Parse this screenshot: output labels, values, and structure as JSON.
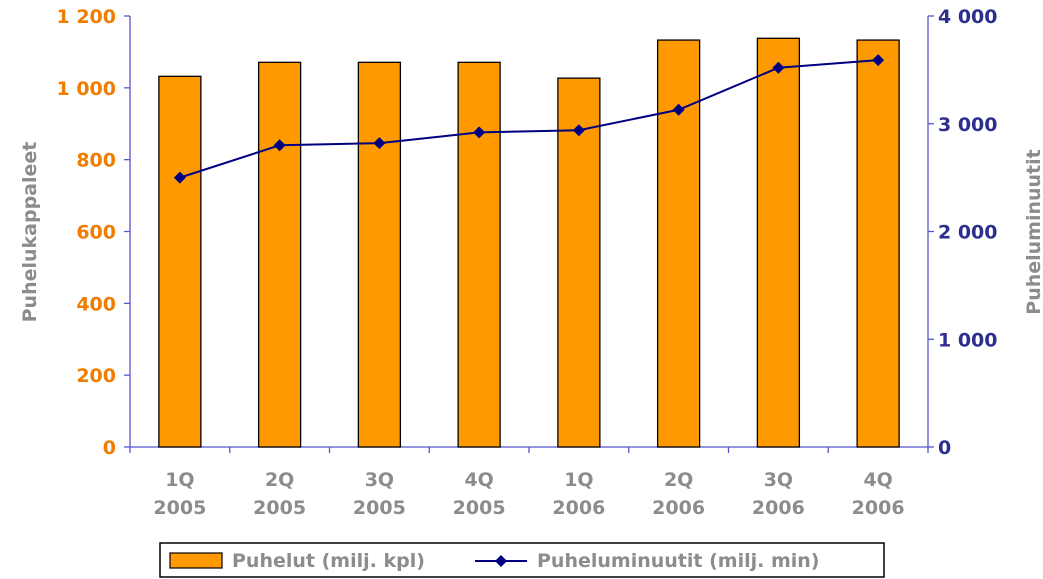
{
  "chart_data": {
    "type": "bar+line",
    "categories": [
      [
        "1Q",
        "2005"
      ],
      [
        "2Q",
        "2005"
      ],
      [
        "3Q",
        "2005"
      ],
      [
        "4Q",
        "2005"
      ],
      [
        "1Q",
        "2006"
      ],
      [
        "2Q",
        "2006"
      ],
      [
        "3Q",
        "2006"
      ],
      [
        "4Q",
        "2006"
      ]
    ],
    "series": [
      {
        "name": "Puhelut (milj. kpl)",
        "type": "bar",
        "axis": "left",
        "color": "#ff9900",
        "values": [
          1032,
          1071,
          1071,
          1071,
          1027,
          1133,
          1138,
          1133
        ]
      },
      {
        "name": "Puheluminuutit (milj. min)",
        "type": "line",
        "axis": "right",
        "color": "#000080",
        "marker": "diamond",
        "values": [
          2500,
          2800,
          2820,
          2920,
          2940,
          3130,
          3520,
          3590
        ]
      }
    ],
    "y_left": {
      "label": "Puhelukappaleet",
      "ylim": [
        0,
        1200
      ],
      "ticks": [
        0,
        200,
        400,
        600,
        800,
        1000,
        1200
      ],
      "tick_labels": [
        "0",
        "200",
        "400",
        "600",
        "800",
        "1 000",
        "1 200"
      ],
      "color": "#f07c00"
    },
    "y_right": {
      "label": "Puheluminuutit",
      "ylim": [
        0,
        4000
      ],
      "ticks": [
        0,
        1000,
        2000,
        3000,
        4000
      ],
      "tick_labels": [
        "0",
        "1 000",
        "2 000",
        "3 000",
        "4 000"
      ],
      "color": "#2e2e8f"
    },
    "grid": false,
    "legend_position": "bottom",
    "axis_color": "#5555cc"
  }
}
